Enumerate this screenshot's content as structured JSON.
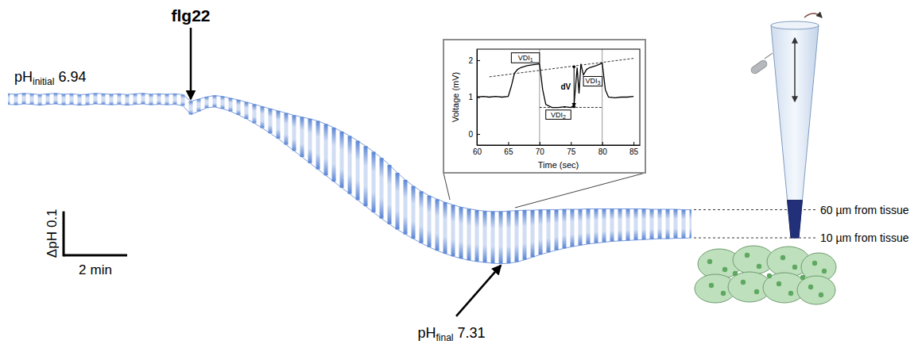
{
  "chart_data": [
    {
      "type": "line",
      "x": [
        0,
        0.25,
        0.5,
        0.75,
        1,
        1.25,
        1.5,
        1.75,
        2,
        2.25,
        2.5,
        2.75,
        3,
        3.25,
        3.5,
        3.75,
        4,
        4.25,
        4.5,
        4.75,
        5,
        5.25,
        5.5,
        5.75,
        6,
        6.25,
        6.5,
        6.75,
        7,
        7.25,
        7.5,
        7.75,
        8,
        8.25,
        8.5,
        8.75,
        9,
        9.25,
        9.5,
        9.75,
        10,
        10.25,
        10.5,
        10.75,
        11,
        11.25,
        11.5,
        11.75,
        12,
        12.25,
        12.5,
        12.75,
        13,
        13.25,
        13.5,
        13.75,
        14,
        14.25,
        14.5,
        14.75,
        15,
        15.25,
        15.5,
        15.75,
        16,
        16.25,
        16.5,
        16.75,
        17,
        17.25,
        17.5,
        17.75,
        18,
        18.25,
        18.5,
        18.75,
        19,
        19.25,
        19.5,
        19.75,
        20,
        20.25,
        20.5,
        20.75,
        21,
        21.25,
        21.5
      ],
      "series": [
        {
          "color": "#5b86d4",
          "values": [
            6.928,
            6.929,
            6.927,
            6.928,
            6.93,
            6.928,
            6.927,
            6.929,
            6.928,
            6.93,
            6.929,
            6.927,
            6.928,
            6.929,
            6.928,
            6.93,
            6.928,
            6.927,
            6.929,
            6.928,
            6.929,
            6.928,
            6.93,
            6.945,
            6.94,
            6.935,
            6.932,
            6.934,
            6.938,
            6.942,
            6.947,
            6.952,
            6.957,
            6.962,
            6.967,
            6.972,
            6.977,
            6.981,
            6.985,
            6.99,
            6.997,
            7.005,
            7.014,
            7.024,
            7.035,
            7.047,
            7.06,
            7.074,
            7.09,
            7.108,
            7.124,
            7.138,
            7.15,
            7.16,
            7.168,
            7.175,
            7.181,
            7.186,
            7.19,
            7.193,
            7.195,
            7.196,
            7.196,
            7.195,
            7.194,
            7.193,
            7.193,
            7.192,
            7.192,
            7.192,
            7.191,
            7.191,
            7.191,
            7.19,
            7.19,
            7.19,
            7.19,
            7.19,
            7.19,
            7.19,
            7.19,
            7.191,
            7.191,
            7.191,
            7.191,
            7.192,
            7.192
          ]
        },
        {
          "color": "#5b86d4",
          "values": [
            6.952,
            6.953,
            6.951,
            6.952,
            6.954,
            6.952,
            6.951,
            6.953,
            6.952,
            6.954,
            6.953,
            6.951,
            6.952,
            6.953,
            6.952,
            6.954,
            6.952,
            6.951,
            6.953,
            6.952,
            6.953,
            6.952,
            6.955,
            6.975,
            6.968,
            6.96,
            6.958,
            6.962,
            6.968,
            6.976,
            6.985,
            6.995,
            7.006,
            7.018,
            7.03,
            7.044,
            7.058,
            7.072,
            7.086,
            7.1,
            7.114,
            7.128,
            7.142,
            7.156,
            7.17,
            7.184,
            7.198,
            7.212,
            7.225,
            7.237,
            7.248,
            7.258,
            7.268,
            7.277,
            7.285,
            7.292,
            7.298,
            7.303,
            7.307,
            7.31,
            7.312,
            7.314,
            7.315,
            7.314,
            7.311,
            7.306,
            7.3,
            7.294,
            7.289,
            7.284,
            7.28,
            7.276,
            7.273,
            7.27,
            7.268,
            7.266,
            7.264,
            7.263,
            7.262,
            7.261,
            7.26,
            7.259,
            7.258,
            7.258,
            7.257,
            7.257,
            7.256
          ]
        }
      ],
      "xlim": [
        0,
        21.5
      ],
      "ylim": [
        6.8,
        7.4
      ],
      "tick_labels": false,
      "treatment": {
        "text": "flg22",
        "x": 5.75
      },
      "ph_initial": {
        "text": "pH",
        "sub": "initial",
        "value": 6.94
      },
      "ph_final": {
        "text": "pH",
        "sub": "final",
        "value": 7.31,
        "x": 15.5
      },
      "scale_bar": {
        "y": 0.1,
        "y_label": "ΔpH",
        "x": 2,
        "x_label": "min"
      },
      "probe_positions": [
        "60 µm from tissue",
        "10 µm from tissue"
      ]
    },
    {
      "type": "line",
      "x": [
        60,
        61,
        62,
        63,
        64,
        65,
        65.5,
        66,
        66.5,
        67,
        68,
        69,
        70,
        70.5,
        71,
        72,
        73,
        74,
        75,
        75.5,
        76,
        76.3,
        76.6,
        77,
        77.5,
        78,
        79,
        80,
        80.5,
        81,
        82,
        83,
        84,
        85
      ],
      "values": [
        1.0,
        1.02,
        1.0,
        1.02,
        1.0,
        1.02,
        1.3,
        1.65,
        1.75,
        1.8,
        1.85,
        1.88,
        1.9,
        1.2,
        0.8,
        0.72,
        0.72,
        0.74,
        0.72,
        0.78,
        1.8,
        1.1,
        1.9,
        1.6,
        1.75,
        1.8,
        1.85,
        1.92,
        1.2,
        1.0,
        0.98,
        1.0,
        1.0,
        1.02
      ],
      "color": "#000000",
      "xlim": [
        60,
        86
      ],
      "ylim": [
        -0.3,
        2.3
      ],
      "xticks": [
        60,
        65,
        70,
        75,
        80,
        85
      ],
      "yticks": [
        0,
        1,
        2
      ],
      "xlabel": "Time (sec)",
      "ylabel": "Voltage (mV)",
      "vlines": [
        70,
        80
      ],
      "boxes": [
        {
          "text": "VDI",
          "sub": "1",
          "x": [
            65.5,
            70
          ],
          "y": [
            1.93,
            2.2
          ]
        },
        {
          "text": "VDI",
          "sub": "2",
          "x": [
            71,
            75
          ],
          "y": [
            0.4,
            0.65
          ]
        },
        {
          "text": "VDI",
          "sub": "3",
          "x": [
            77,
            80
          ],
          "y": [
            1.3,
            1.56
          ]
        }
      ],
      "fit_lines": [
        {
          "x": [
            62,
            85
          ],
          "y": [
            1.55,
            2.05
          ]
        },
        {
          "x": [
            70,
            80
          ],
          "y": [
            0.72,
            0.72
          ]
        }
      ],
      "dv": {
        "text": "dV",
        "x": 75.5,
        "y": [
          1.82,
          0.74
        ]
      }
    }
  ]
}
